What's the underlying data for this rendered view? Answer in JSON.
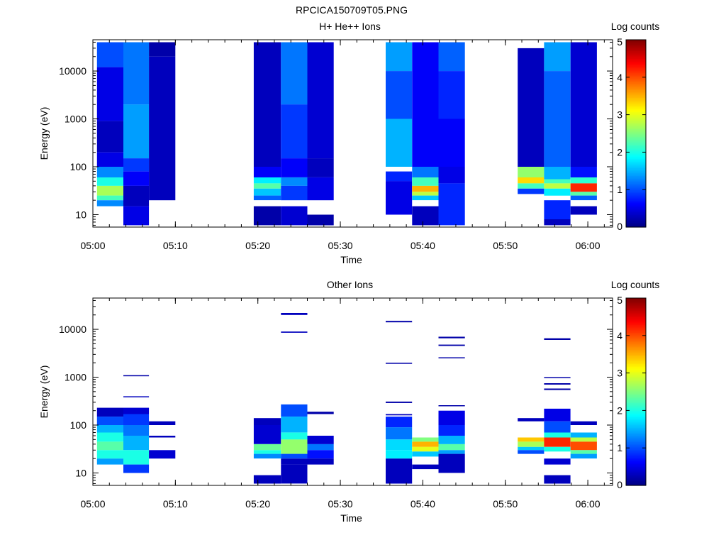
{
  "figure_title": "RPCICA150709T05.PNG",
  "colormap": [
    "#000080",
    "#0000ff",
    "#0080ff",
    "#00ffff",
    "#80ff80",
    "#ffff00",
    "#ff8000",
    "#ff0000",
    "#800000"
  ],
  "chart_data": [
    {
      "type": "heatmap",
      "title": "H+ He++ Ions",
      "xlabel": "Time",
      "ylabel": "Energy (eV)",
      "yscale": "log",
      "xlim": [
        "05:00",
        "06:03"
      ],
      "ylim": [
        5.5,
        45000
      ],
      "xticks": [
        "05:00",
        "05:10",
        "05:20",
        "05:30",
        "05:40",
        "05:50",
        "06:00"
      ],
      "yticks": [
        "10",
        "100",
        "1000",
        "10000"
      ],
      "colorbar": {
        "label": "Log counts",
        "range": [
          0,
          5
        ],
        "ticks": [
          "0",
          "1",
          "2",
          "3",
          "4",
          "5"
        ]
      },
      "columns": [
        {
          "t_start": "05:00.5",
          "t_end": "05:03.7",
          "cells": [
            [
              40000,
              12000,
              1.0
            ],
            [
              12000,
              900,
              0.5
            ],
            [
              900,
              200,
              0.3
            ],
            [
              200,
              100,
              0.5
            ],
            [
              100,
              60,
              1.3
            ],
            [
              60,
              40,
              2.0
            ],
            [
              40,
              25,
              2.7
            ],
            [
              25,
              20,
              2.2
            ],
            [
              20,
              15,
              1.3
            ]
          ]
        },
        {
          "t_start": "05:03.7",
          "t_end": "05:06.8",
          "cells": [
            [
              40000,
              2000,
              1.2
            ],
            [
              2000,
              150,
              1.4
            ],
            [
              150,
              80,
              0.9
            ],
            [
              80,
              40,
              0.6
            ],
            [
              40,
              15,
              0.3
            ],
            [
              15,
              6,
              0.5
            ]
          ]
        },
        {
          "t_start": "05:06.8",
          "t_end": "05:10.0",
          "cells": [
            [
              40000,
              20000,
              0.2
            ],
            [
              20000,
              20,
              0.3
            ]
          ]
        },
        {
          "t_start": "05:19.5",
          "t_end": "05:22.8",
          "cells": [
            [
              40000,
              100,
              0.3
            ],
            [
              100,
              60,
              0.6
            ],
            [
              60,
              45,
              1.8
            ],
            [
              45,
              35,
              2.3
            ],
            [
              35,
              25,
              1.6
            ],
            [
              25,
              20,
              1.1
            ],
            [
              15,
              6,
              0.2
            ]
          ]
        },
        {
          "t_start": "05:22.8",
          "t_end": "05:26.0",
          "cells": [
            [
              40000,
              2000,
              1.2
            ],
            [
              2000,
              150,
              0.9
            ],
            [
              150,
              60,
              0.6
            ],
            [
              60,
              40,
              1.3
            ],
            [
              40,
              20,
              0.9
            ],
            [
              15,
              6,
              0.4
            ]
          ]
        },
        {
          "t_start": "05:26.0",
          "t_end": "05:29.2",
          "cells": [
            [
              40000,
              150,
              0.4
            ],
            [
              150,
              60,
              0.3
            ],
            [
              60,
              20,
              0.5
            ],
            [
              10,
              6,
              0.2
            ]
          ]
        },
        {
          "t_start": "05:35.5",
          "t_end": "05:38.7",
          "cells": [
            [
              40000,
              10000,
              1.4
            ],
            [
              10000,
              1000,
              1.0
            ],
            [
              1000,
              100,
              1.5
            ],
            [
              80,
              50,
              0.8
            ],
            [
              50,
              10,
              0.5
            ]
          ]
        },
        {
          "t_start": "05:38.7",
          "t_end": "05:41.9",
          "cells": [
            [
              40000,
              100,
              0.6
            ],
            [
              100,
              60,
              1.2
            ],
            [
              60,
              40,
              2.2
            ],
            [
              40,
              30,
              3.5
            ],
            [
              30,
              25,
              2.8
            ],
            [
              25,
              20,
              1.6
            ],
            [
              15,
              6,
              0.3
            ]
          ]
        },
        {
          "t_start": "05:41.9",
          "t_end": "05:45.1",
          "cells": [
            [
              40000,
              10000,
              1.1
            ],
            [
              10000,
              1000,
              0.8
            ],
            [
              1000,
              100,
              0.6
            ],
            [
              100,
              45,
              0.5
            ],
            [
              45,
              6,
              0.8
            ]
          ]
        },
        {
          "t_start": "05:51.5",
          "t_end": "05:54.7",
          "cells": [
            [
              30000,
              100,
              0.3
            ],
            [
              100,
              60,
              2.6
            ],
            [
              60,
              45,
              3.3
            ],
            [
              45,
              35,
              2.2
            ],
            [
              35,
              27,
              0.9
            ]
          ]
        },
        {
          "t_start": "05:54.7",
          "t_end": "05:57.9",
          "cells": [
            [
              40000,
              10000,
              1.4
            ],
            [
              10000,
              100,
              1.1
            ],
            [
              100,
              55,
              1.5
            ],
            [
              55,
              45,
              2.2
            ],
            [
              45,
              35,
              2.8
            ],
            [
              35,
              25,
              1.8
            ],
            [
              20,
              8,
              0.8
            ],
            [
              8,
              6,
              0.3
            ]
          ]
        },
        {
          "t_start": "05:57.9",
          "t_end": "06:01.1",
          "cells": [
            [
              40000,
              100,
              0.4
            ],
            [
              100,
              60,
              0.7
            ],
            [
              60,
              45,
              2.1
            ],
            [
              45,
              30,
              4.2
            ],
            [
              30,
              25,
              2.3
            ],
            [
              25,
              20,
              1.1
            ],
            [
              15,
              10,
              0.3
            ]
          ]
        }
      ]
    },
    {
      "type": "heatmap",
      "title": "Other Ions",
      "xlabel": "Time",
      "ylabel": "Energy (eV)",
      "yscale": "log",
      "xlim": [
        "05:00",
        "06:03"
      ],
      "ylim": [
        5.5,
        45000
      ],
      "xticks": [
        "05:00",
        "05:10",
        "05:20",
        "05:30",
        "05:40",
        "05:50",
        "06:00"
      ],
      "yticks": [
        "10",
        "100",
        "1000",
        "10000"
      ],
      "colorbar": {
        "label": "Log counts",
        "range": [
          0,
          5
        ],
        "ticks": [
          "0",
          "1",
          "2",
          "3",
          "4",
          "5"
        ]
      },
      "columns": [
        {
          "t_start": "05:00.5",
          "t_end": "05:03.7",
          "cells": [
            [
              230,
              150,
              0.3
            ],
            [
              150,
              100,
              1.0
            ],
            [
              100,
              70,
              1.5
            ],
            [
              70,
              45,
              2.0
            ],
            [
              45,
              30,
              2.3
            ],
            [
              30,
              20,
              2.0
            ],
            [
              20,
              15,
              1.4
            ]
          ]
        },
        {
          "t_start": "05:03.7",
          "t_end": "05:06.8",
          "cells": [
            [
              1100,
              1050,
              0.2
            ],
            [
              400,
              380,
              0.3
            ],
            [
              230,
              170,
              0.4
            ],
            [
              170,
              100,
              0.9
            ],
            [
              100,
              60,
              1.2
            ],
            [
              60,
              30,
              1.5
            ],
            [
              30,
              15,
              2.0
            ],
            [
              15,
              10,
              0.9
            ]
          ]
        },
        {
          "t_start": "05:06.8",
          "t_end": "05:10.0",
          "cells": [
            [
              120,
              100,
              0.3
            ],
            [
              60,
              55,
              0.3
            ],
            [
              30,
              20,
              0.4
            ]
          ]
        },
        {
          "t_start": "05:19.5",
          "t_end": "05:22.8",
          "cells": [
            [
              140,
              100,
              0.3
            ],
            [
              100,
              40,
              0.4
            ],
            [
              40,
              30,
              2.4
            ],
            [
              30,
              25,
              2.0
            ],
            [
              25,
              20,
              1.3
            ],
            [
              9,
              6,
              0.3
            ]
          ]
        },
        {
          "t_start": "05:22.8",
          "t_end": "05:26.0",
          "cells": [
            [
              22000,
              20000,
              0.3
            ],
            [
              9000,
              8500,
              0.3
            ],
            [
              270,
              150,
              1.0
            ],
            [
              150,
              70,
              1.5
            ],
            [
              70,
              50,
              2.0
            ],
            [
              50,
              25,
              2.6
            ],
            [
              25,
              20,
              1.0
            ],
            [
              20,
              15,
              0.3
            ],
            [
              15,
              6,
              0.3
            ]
          ]
        },
        {
          "t_start": "05:26.0",
          "t_end": "05:29.2",
          "cells": [
            [
              190,
              170,
              0.2
            ],
            [
              60,
              40,
              0.4
            ],
            [
              40,
              30,
              1.2
            ],
            [
              30,
              20,
              0.7
            ],
            [
              20,
              15,
              0.3
            ]
          ]
        },
        {
          "t_start": "05:35.5",
          "t_end": "05:38.7",
          "cells": [
            [
              15000,
              14000,
              0.2
            ],
            [
              2000,
              1900,
              0.2
            ],
            [
              310,
              290,
              0.2
            ],
            [
              170,
              160,
              0.3
            ],
            [
              150,
              90,
              0.8
            ],
            [
              90,
              50,
              1.2
            ],
            [
              50,
              30,
              1.7
            ],
            [
              30,
              20,
              1.8
            ],
            [
              20,
              6,
              0.3
            ]
          ]
        },
        {
          "t_start": "05:38.7",
          "t_end": "05:41.9",
          "cells": [
            [
              55,
              45,
              2.5
            ],
            [
              45,
              35,
              3.5
            ],
            [
              35,
              28,
              3.0
            ],
            [
              28,
              22,
              1.6
            ],
            [
              15,
              12,
              0.3
            ]
          ]
        },
        {
          "t_start": "05:41.9",
          "t_end": "05:45.1",
          "cells": [
            [
              7000,
              6500,
              0.2
            ],
            [
              4800,
              4500,
              0.2
            ],
            [
              2600,
              2500,
              0.2
            ],
            [
              260,
              250,
              0.2
            ],
            [
              200,
              100,
              0.5
            ],
            [
              100,
              60,
              0.8
            ],
            [
              60,
              40,
              1.5
            ],
            [
              40,
              30,
              2.3
            ],
            [
              30,
              25,
              1.4
            ],
            [
              25,
              10,
              0.3
            ]
          ]
        },
        {
          "t_start": "05:51.5",
          "t_end": "05:54.7",
          "cells": [
            [
              140,
              120,
              0.3
            ],
            [
              55,
              45,
              3.4
            ],
            [
              45,
              35,
              2.7
            ],
            [
              35,
              30,
              1.6
            ],
            [
              30,
              25,
              1.0
            ]
          ]
        },
        {
          "t_start": "05:54.7",
          "t_end": "05:57.9",
          "cells": [
            [
              6500,
              6000,
              0.2
            ],
            [
              1000,
              950,
              0.2
            ],
            [
              750,
              700,
              0.2
            ],
            [
              580,
              540,
              0.2
            ],
            [
              220,
              120,
              0.5
            ],
            [
              120,
              70,
              1.0
            ],
            [
              70,
              55,
              2.0
            ],
            [
              55,
              35,
              4.2
            ],
            [
              35,
              28,
              2.0
            ],
            [
              20,
              15,
              0.4
            ],
            [
              9,
              6,
              0.3
            ]
          ]
        },
        {
          "t_start": "05:57.9",
          "t_end": "06:01.1",
          "cells": [
            [
              120,
              100,
              0.3
            ],
            [
              70,
              55,
              1.5
            ],
            [
              55,
              45,
              2.8
            ],
            [
              45,
              30,
              4.0
            ],
            [
              30,
              25,
              2.3
            ],
            [
              25,
              20,
              1.4
            ]
          ]
        }
      ]
    }
  ]
}
